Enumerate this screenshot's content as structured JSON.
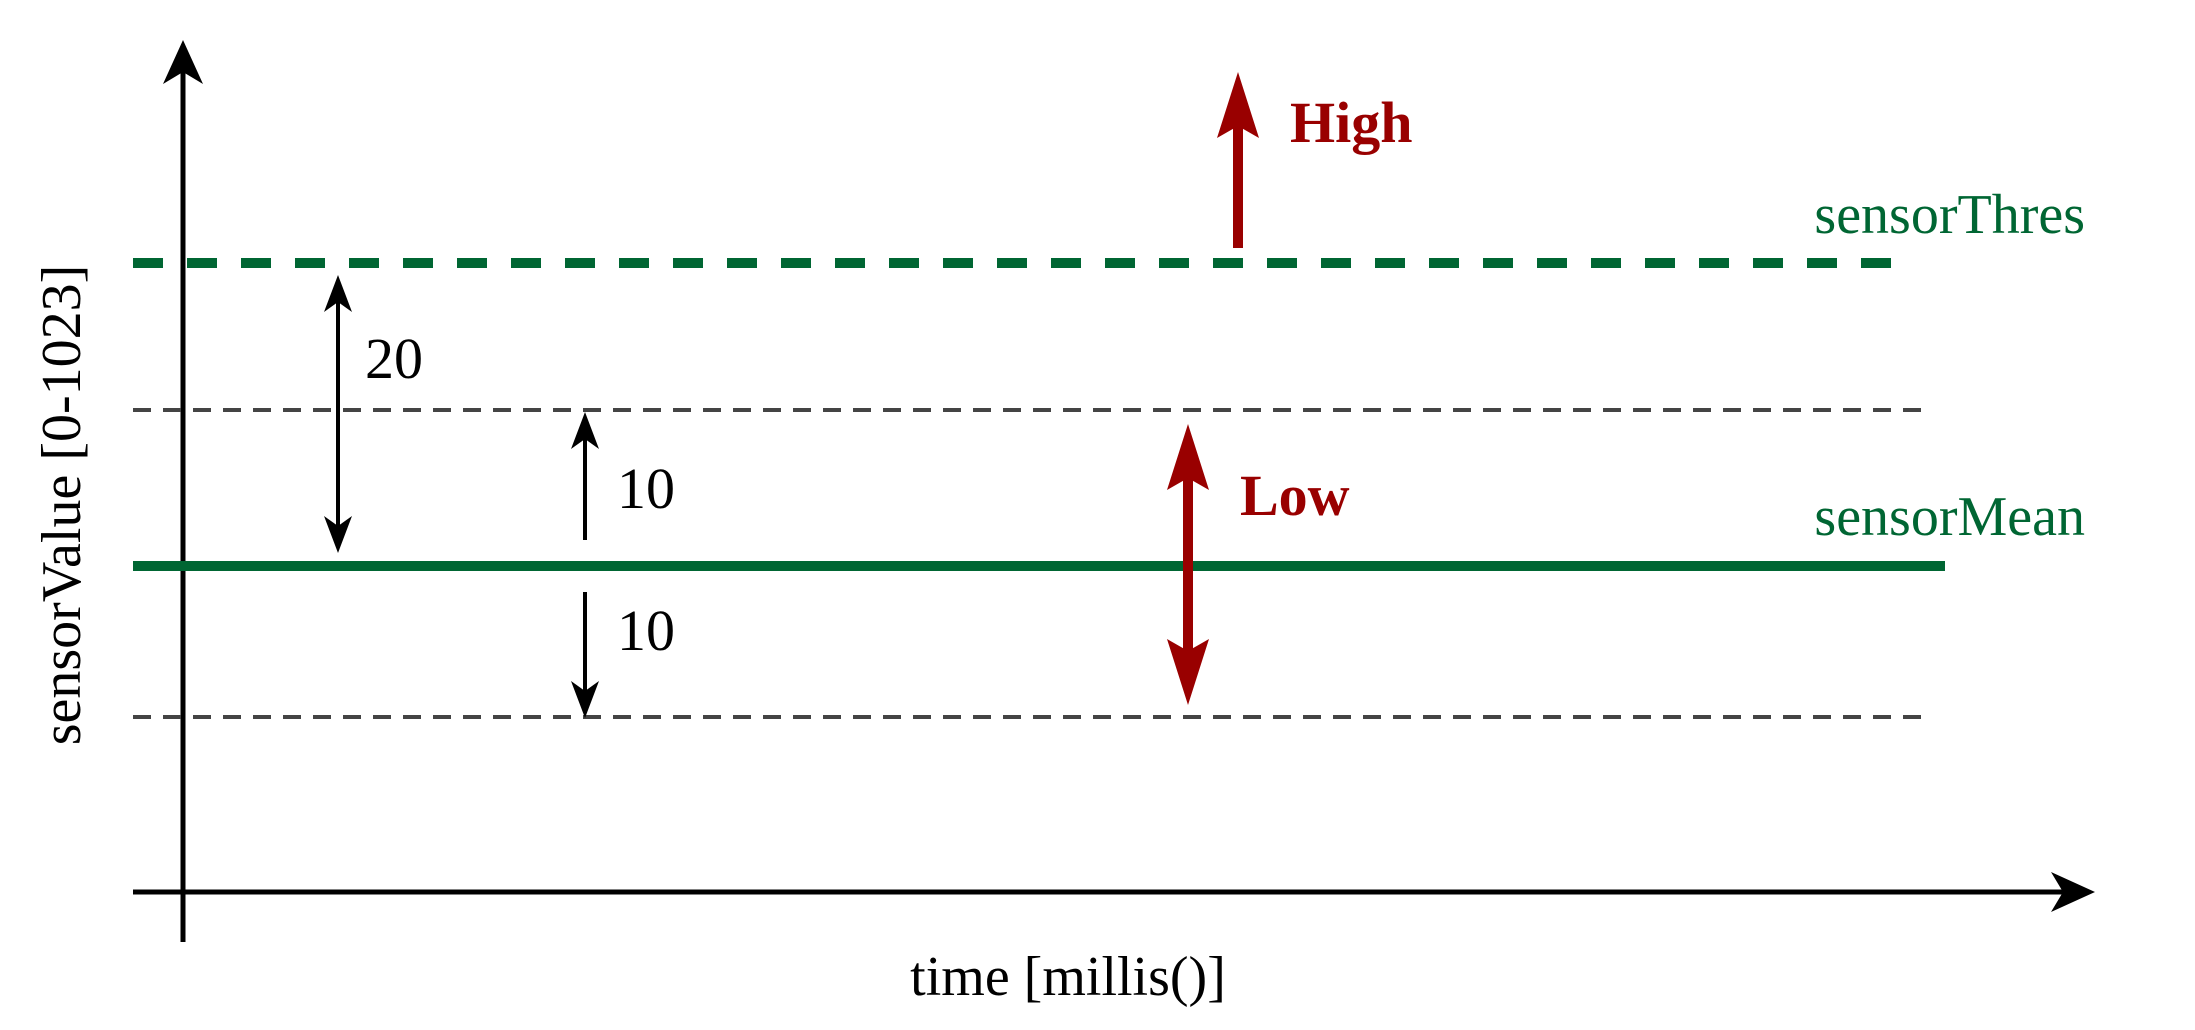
{
  "axes": {
    "x_label": "time [millis()]",
    "y_label": "sensorValue [0-1023]"
  },
  "lines": {
    "threshold_label": "sensorThres",
    "mean_label": "sensorMean"
  },
  "gaps": {
    "threshold_gap": "20",
    "upper_band": "10",
    "lower_band": "10"
  },
  "states": {
    "high_label": "High",
    "low_label": "Low"
  },
  "colors": {
    "green": "#006633",
    "red": "#990000",
    "grey": "#444444",
    "black": "#000000"
  }
}
